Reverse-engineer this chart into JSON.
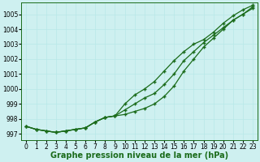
{
  "x": [
    0,
    1,
    2,
    3,
    4,
    5,
    6,
    7,
    8,
    9,
    10,
    11,
    12,
    13,
    14,
    15,
    16,
    17,
    18,
    19,
    20,
    21,
    22,
    23
  ],
  "line_main": [
    997.5,
    997.3,
    997.2,
    997.1,
    997.2,
    997.3,
    997.4,
    997.8,
    998.1,
    998.2,
    998.6,
    999.0,
    999.4,
    999.7,
    1000.3,
    1001.0,
    1001.9,
    1002.5,
    1003.1,
    1003.6,
    1004.1,
    1004.6,
    1005.0,
    1005.5
  ],
  "line_upper": [
    997.5,
    997.3,
    997.2,
    997.1,
    997.2,
    997.3,
    997.4,
    997.8,
    998.1,
    998.2,
    999.0,
    999.6,
    1000.0,
    1000.5,
    1001.2,
    1001.9,
    1002.5,
    1003.0,
    1003.3,
    1003.8,
    1004.4,
    1004.9,
    1005.3,
    1005.6
  ],
  "line_lower": [
    997.5,
    997.3,
    997.2,
    997.1,
    997.2,
    997.3,
    997.4,
    997.8,
    998.1,
    998.2,
    998.3,
    998.5,
    998.7,
    999.0,
    999.5,
    1000.2,
    1001.2,
    1002.0,
    1002.8,
    1003.4,
    1004.0,
    1004.6,
    1005.0,
    1005.4
  ],
  "ylim": [
    996.6,
    1005.8
  ],
  "yticks": [
    997,
    998,
    999,
    1000,
    1001,
    1002,
    1003,
    1004,
    1005
  ],
  "xlim": [
    -0.5,
    23.5
  ],
  "xticks": [
    0,
    1,
    2,
    3,
    4,
    5,
    6,
    7,
    8,
    9,
    10,
    11,
    12,
    13,
    14,
    15,
    16,
    17,
    18,
    19,
    20,
    21,
    22,
    23
  ],
  "xlabel": "Graphe pression niveau de la mer (hPa)",
  "line_color": "#1a6b1a",
  "bg_color": "#cef0f0",
  "grid_color": "#b8e8e8",
  "marker": "+",
  "markersize": 3.5,
  "linewidth": 0.9,
  "markeredgewidth": 1.0,
  "xlabel_fontsize": 7,
  "tick_fontsize": 5.5
}
